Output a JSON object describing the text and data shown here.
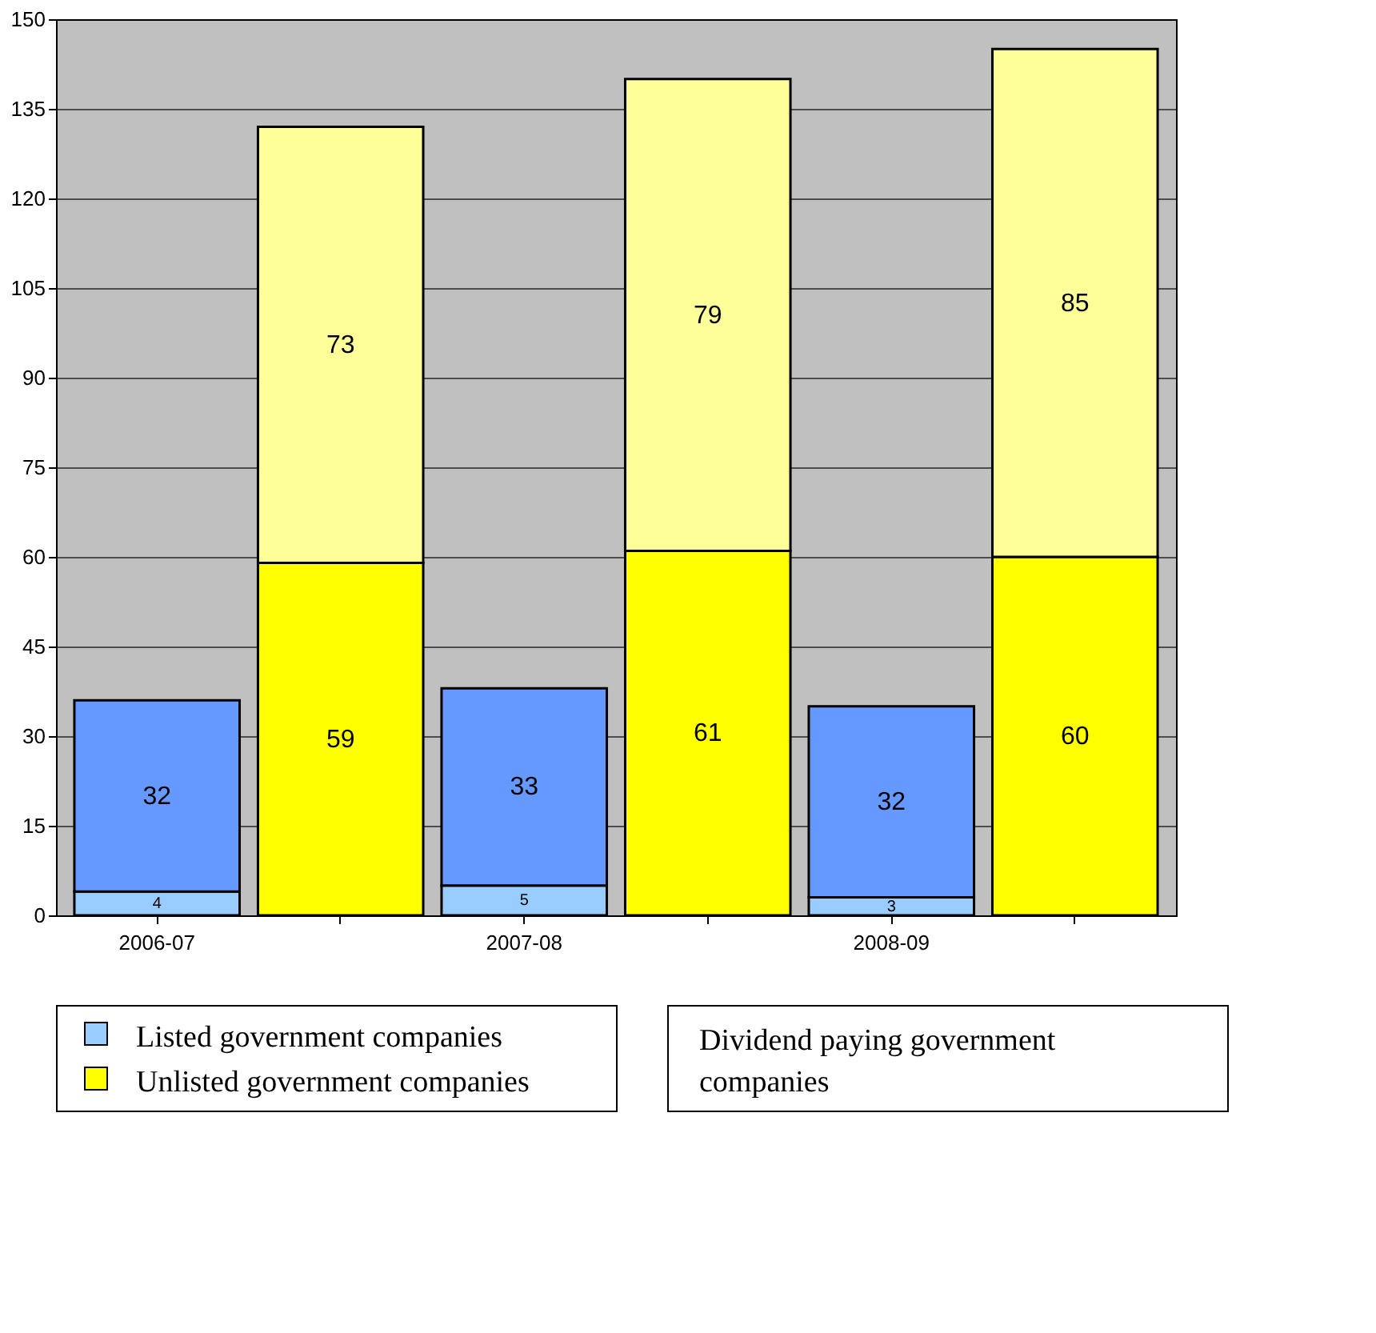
{
  "chart_data": {
    "type": "bar",
    "stacked": true,
    "categories": [
      "2006-07",
      null,
      "2007-08",
      null,
      "2008-09",
      null
    ],
    "series": [
      {
        "name": "Listed government companies",
        "color": "#99ccff",
        "values": [
          4,
          null,
          5,
          null,
          3,
          null
        ]
      },
      {
        "color": "#6699ff",
        "values": [
          32,
          null,
          33,
          null,
          32,
          null
        ]
      },
      {
        "name": "Unlisted government companies",
        "color": "#ffff00",
        "values": [
          null,
          59,
          null,
          61,
          null,
          60
        ]
      },
      {
        "color": "#ffff99",
        "values": [
          null,
          73,
          null,
          79,
          null,
          85
        ]
      }
    ],
    "ylim": [
      0,
      150
    ],
    "yticks": [
      0,
      15,
      30,
      45,
      60,
      75,
      90,
      105,
      120,
      135,
      150
    ],
    "grid": "y",
    "legend": "bottom",
    "data_labels": true,
    "annotations": [
      "Dividend paying government companies"
    ]
  }
}
